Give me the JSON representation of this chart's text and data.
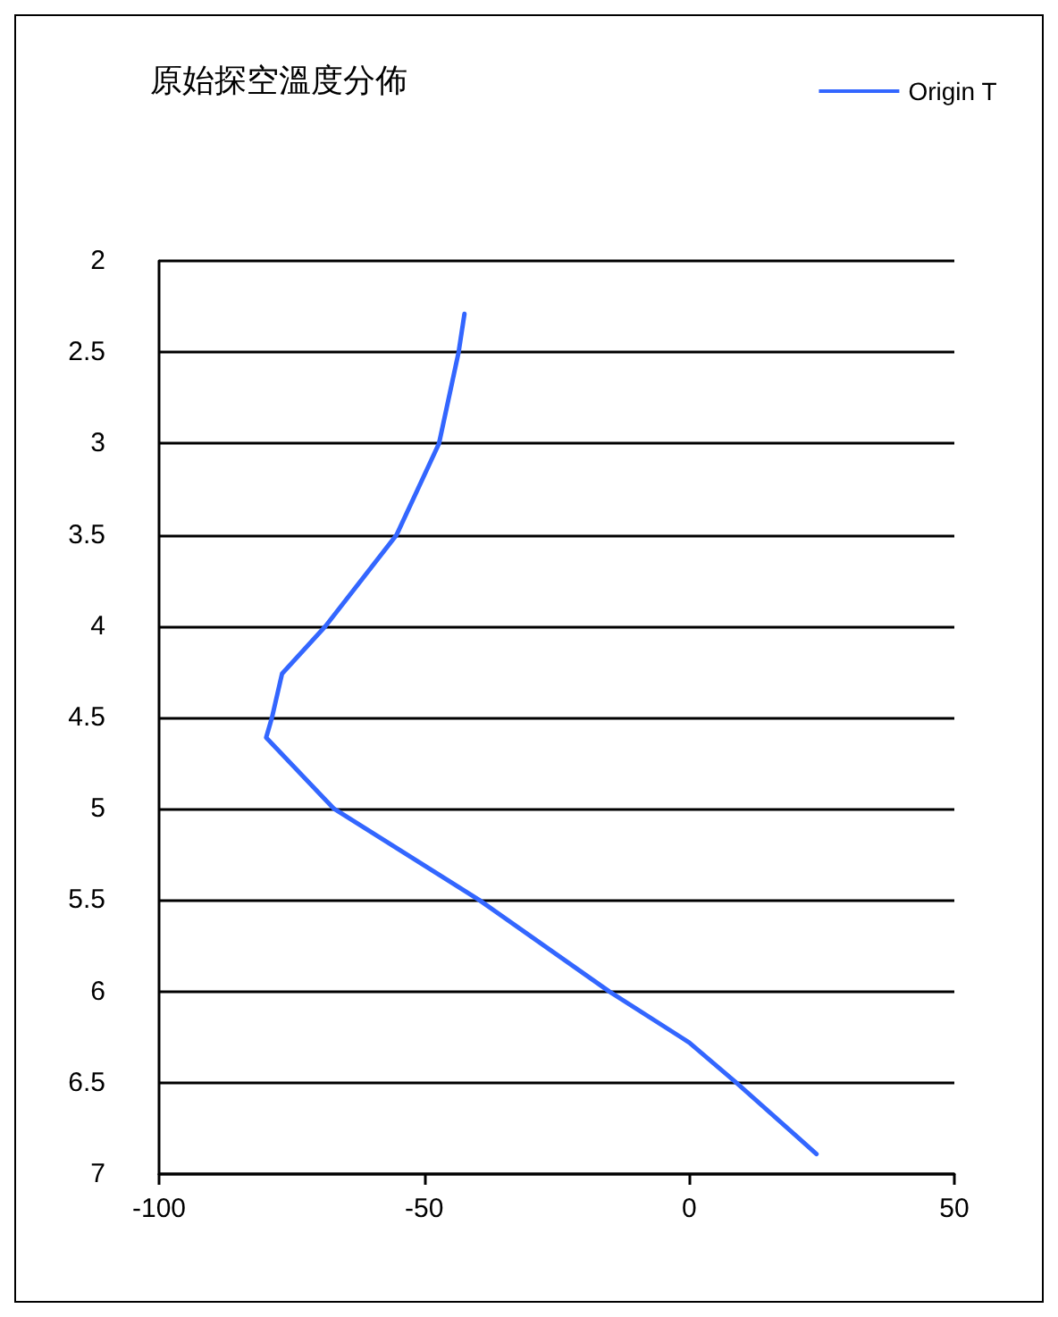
{
  "chart_data": {
    "type": "line",
    "title": "原始探空溫度分佈",
    "x": [
      -42.4,
      -43.5,
      -47.2,
      -55.2,
      -68.6,
      -76.8,
      -78.7,
      -79.8,
      -67.0,
      -39.6,
      -15.1,
      0,
      8.9,
      24.0
    ],
    "series": [
      {
        "name": "Origin T",
        "color": "#3366ff",
        "values": [
          2.29,
          2.5,
          3.0,
          3.5,
          4.0,
          4.26,
          4.5,
          4.61,
          5.0,
          5.5,
          6.0,
          6.28,
          6.5,
          6.89
        ]
      }
    ],
    "xlim": [
      -100,
      50
    ],
    "xticks": [
      -100,
      -50,
      0,
      50
    ],
    "ylim": [
      7,
      2
    ],
    "yticks": [
      2,
      2.5,
      3,
      3.5,
      4,
      4.5,
      5,
      5.5,
      6,
      6.5,
      7
    ],
    "grid": "y",
    "legend": "top right",
    "marker": "none",
    "line_style": "solid"
  }
}
